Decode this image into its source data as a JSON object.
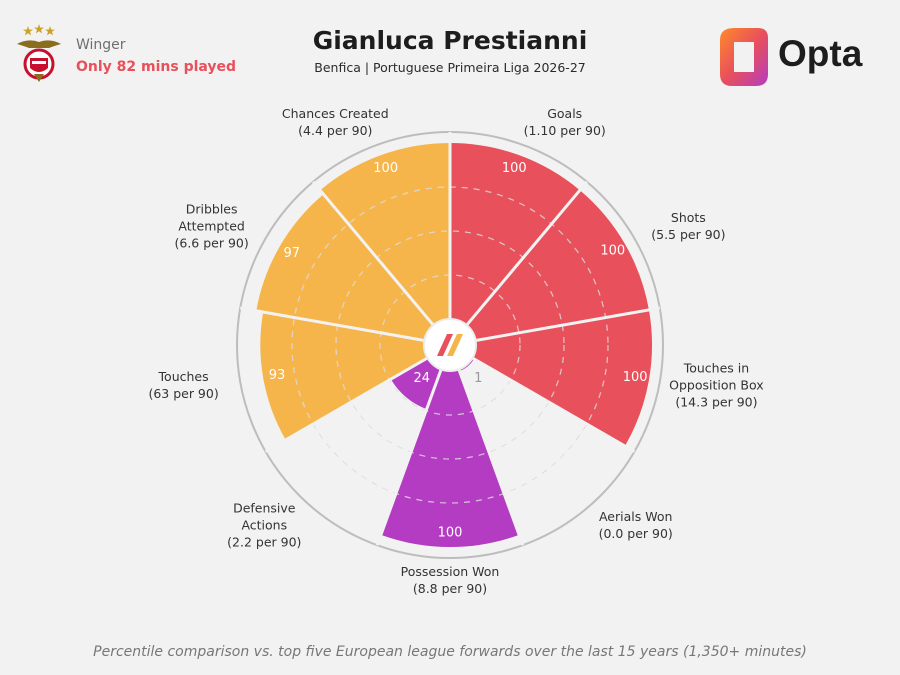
{
  "header": {
    "role": "Winger",
    "minutes_note": "Only 82 mins played",
    "title": "Gianluca Prestianni",
    "subtitle": "Benfica | Portuguese Primeira Liga 2026-27",
    "brand": "Opta"
  },
  "footer": {
    "note": "Percentile comparison vs. top five European league forwards over the last 15 years (1,350+ minutes)"
  },
  "colors": {
    "background": "#f2f2f2",
    "attacking": "#e8505b",
    "possession": "#f5b54a",
    "defending": "#b43cc2",
    "ring": "#bdbdbd",
    "guide": "#c8c8c8"
  },
  "chart_data": {
    "type": "pizza",
    "scale_max": 100,
    "metrics": [
      {
        "name": "Goals",
        "per90": "(1.10 per 90)",
        "percentile": 100,
        "group": "attacking"
      },
      {
        "name": "Shots",
        "per90": "(5.5 per 90)",
        "percentile": 100,
        "group": "attacking"
      },
      {
        "name": "Touches in\nOpposition Box",
        "per90": "(14.3 per 90)",
        "percentile": 100,
        "group": "attacking"
      },
      {
        "name": "Aerials Won",
        "per90": "(0.0 per 90)",
        "percentile": 1,
        "group": "defending"
      },
      {
        "name": "Possession Won",
        "per90": "(8.8 per 90)",
        "percentile": 100,
        "group": "defending"
      },
      {
        "name": "Defensive\nActions",
        "per90": "(2.2 per 90)",
        "percentile": 24,
        "group": "defending"
      },
      {
        "name": "Touches",
        "per90": "(63 per 90)",
        "percentile": 93,
        "group": "possession"
      },
      {
        "name": "Dribbles\nAttempted",
        "per90": "(6.6 per 90)",
        "percentile": 97,
        "group": "possession"
      },
      {
        "name": "Chances Created",
        "per90": "(4.4 per 90)",
        "percentile": 100,
        "group": "possession"
      }
    ]
  }
}
